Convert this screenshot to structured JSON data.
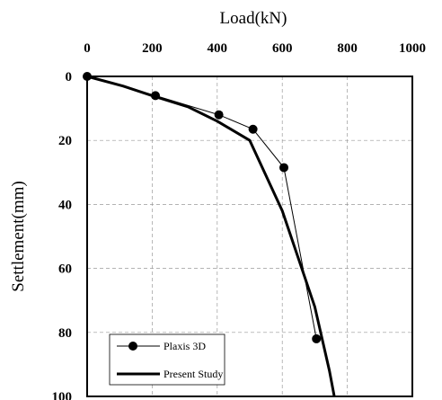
{
  "chart_data": {
    "type": "line",
    "xlabel": "Load(kN)",
    "ylabel": "Settlement(mm)",
    "xlim": [
      0,
      1000
    ],
    "ylim": [
      0,
      100
    ],
    "x_axis_position": "top",
    "y_axis_inverted": true,
    "xticks": [
      "0",
      "200",
      "400",
      "600",
      "800",
      "1000"
    ],
    "yticks": [
      "0",
      "20",
      "40",
      "60",
      "80",
      "100"
    ],
    "grid": true,
    "legend_position": "bottom-left",
    "series": [
      {
        "name": "Plaxis 3D",
        "style": "thin line with circle markers",
        "color": "#000000",
        "points": [
          {
            "x": 0,
            "y": 0
          },
          {
            "x": 210,
            "y": 6
          },
          {
            "x": 405,
            "y": 12
          },
          {
            "x": 510,
            "y": 16.5
          },
          {
            "x": 605,
            "y": 28.5
          },
          {
            "x": 705,
            "y": 82
          }
        ]
      },
      {
        "name": "Present Study",
        "style": "thick line",
        "color": "#000000",
        "points": [
          {
            "x": 0,
            "y": 0
          },
          {
            "x": 110,
            "y": 3
          },
          {
            "x": 200,
            "y": 6
          },
          {
            "x": 310,
            "y": 9.5
          },
          {
            "x": 400,
            "y": 14
          },
          {
            "x": 500,
            "y": 20
          },
          {
            "x": 600,
            "y": 42
          },
          {
            "x": 700,
            "y": 72
          },
          {
            "x": 745,
            "y": 92
          },
          {
            "x": 760,
            "y": 100
          }
        ]
      }
    ]
  }
}
